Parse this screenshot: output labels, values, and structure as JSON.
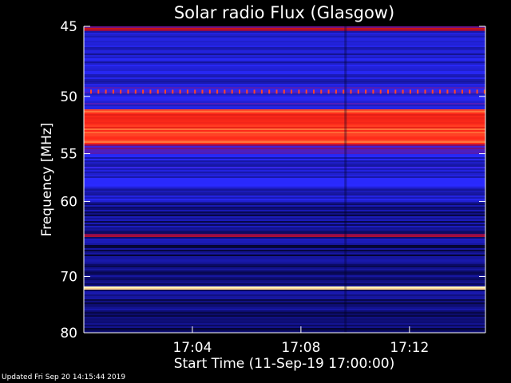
{
  "footer": {
    "updated": "Updated Fri Sep 20 14:15:44 2019"
  },
  "chart_data": {
    "type": "heatmap",
    "title": "Solar radio Flux (Glasgow)",
    "xlabel": "Start Time (11-Sep-19 17:00:00)",
    "ylabel": "Frequency [MHz]",
    "x_ticks": [
      "17:04",
      "17:08",
      "17:12"
    ],
    "x_tick_minutes": [
      4,
      8,
      12
    ],
    "x_range_minutes": [
      0,
      14.8
    ],
    "y_ticks": [
      45,
      50,
      55,
      60,
      70,
      80
    ],
    "y_range_mhz": [
      45,
      80
    ],
    "y_scale": "reciprocal",
    "colormap": [
      "#000000",
      "#0a0a60",
      "#1a1ab4",
      "#2a2aff",
      "#8c0a50",
      "#c81414",
      "#ff2a1a",
      "#ffa050",
      "#ffffc8"
    ],
    "bands": [
      {
        "low_mhz": 45.0,
        "high_mhz": 45.3,
        "level": 0.55
      },
      {
        "low_mhz": 45.3,
        "high_mhz": 49.0,
        "level": 0.28
      },
      {
        "low_mhz": 49.0,
        "high_mhz": 51.0,
        "level": 0.35
      },
      {
        "low_mhz": 51.0,
        "high_mhz": 54.2,
        "level": 0.75
      },
      {
        "low_mhz": 54.2,
        "high_mhz": 55.0,
        "level": 0.45
      },
      {
        "low_mhz": 55.0,
        "high_mhz": 60.0,
        "level": 0.3
      },
      {
        "low_mhz": 60.0,
        "high_mhz": 64.0,
        "level": 0.18
      },
      {
        "low_mhz": 64.0,
        "high_mhz": 64.3,
        "level": 0.55
      },
      {
        "low_mhz": 64.3,
        "high_mhz": 65.5,
        "level": 0.22
      },
      {
        "low_mhz": 65.5,
        "high_mhz": 71.5,
        "level": 0.15
      },
      {
        "low_mhz": 71.5,
        "high_mhz": 72.0,
        "level": 1.0
      },
      {
        "low_mhz": 72.0,
        "high_mhz": 80.0,
        "level": 0.15
      }
    ]
  }
}
